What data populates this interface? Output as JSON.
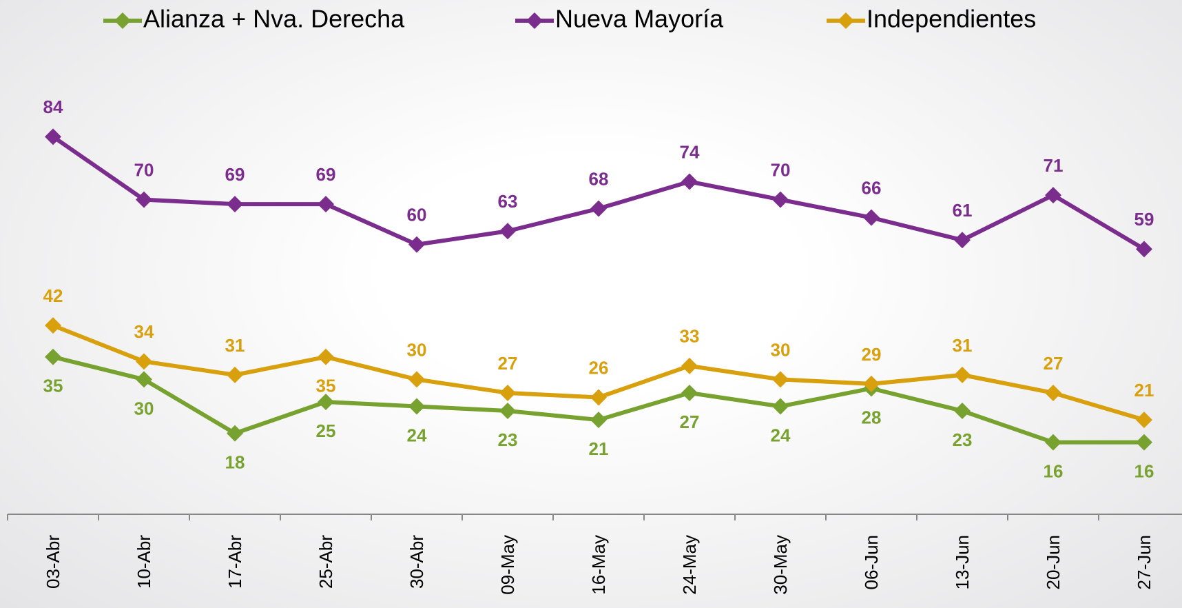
{
  "chart_data": {
    "type": "line",
    "categories": [
      "03-Abr",
      "10-Abr",
      "17-Abr",
      "25-Abr",
      "30-Abr",
      "09-May",
      "16-May",
      "24-May",
      "30-May",
      "06-Jun",
      "13-Jun",
      "20-Jun",
      "27-Jun"
    ],
    "series": [
      {
        "name": "Alianza + Nva. Derecha",
        "color": "#78a22f",
        "values": [
          35,
          30,
          18,
          25,
          24,
          23,
          21,
          27,
          24,
          28,
          23,
          16,
          16
        ]
      },
      {
        "name": "Nueva Mayoría",
        "color": "#7b2d8e",
        "values": [
          84,
          70,
          69,
          69,
          60,
          63,
          68,
          74,
          70,
          66,
          61,
          71,
          59
        ]
      },
      {
        "name": "Independientes",
        "color": "#d9a00e",
        "values": [
          42,
          34,
          31,
          35,
          30,
          27,
          26,
          33,
          30,
          29,
          31,
          27,
          21
        ]
      }
    ],
    "ylim": [
      0,
      100
    ],
    "legend": "top"
  }
}
